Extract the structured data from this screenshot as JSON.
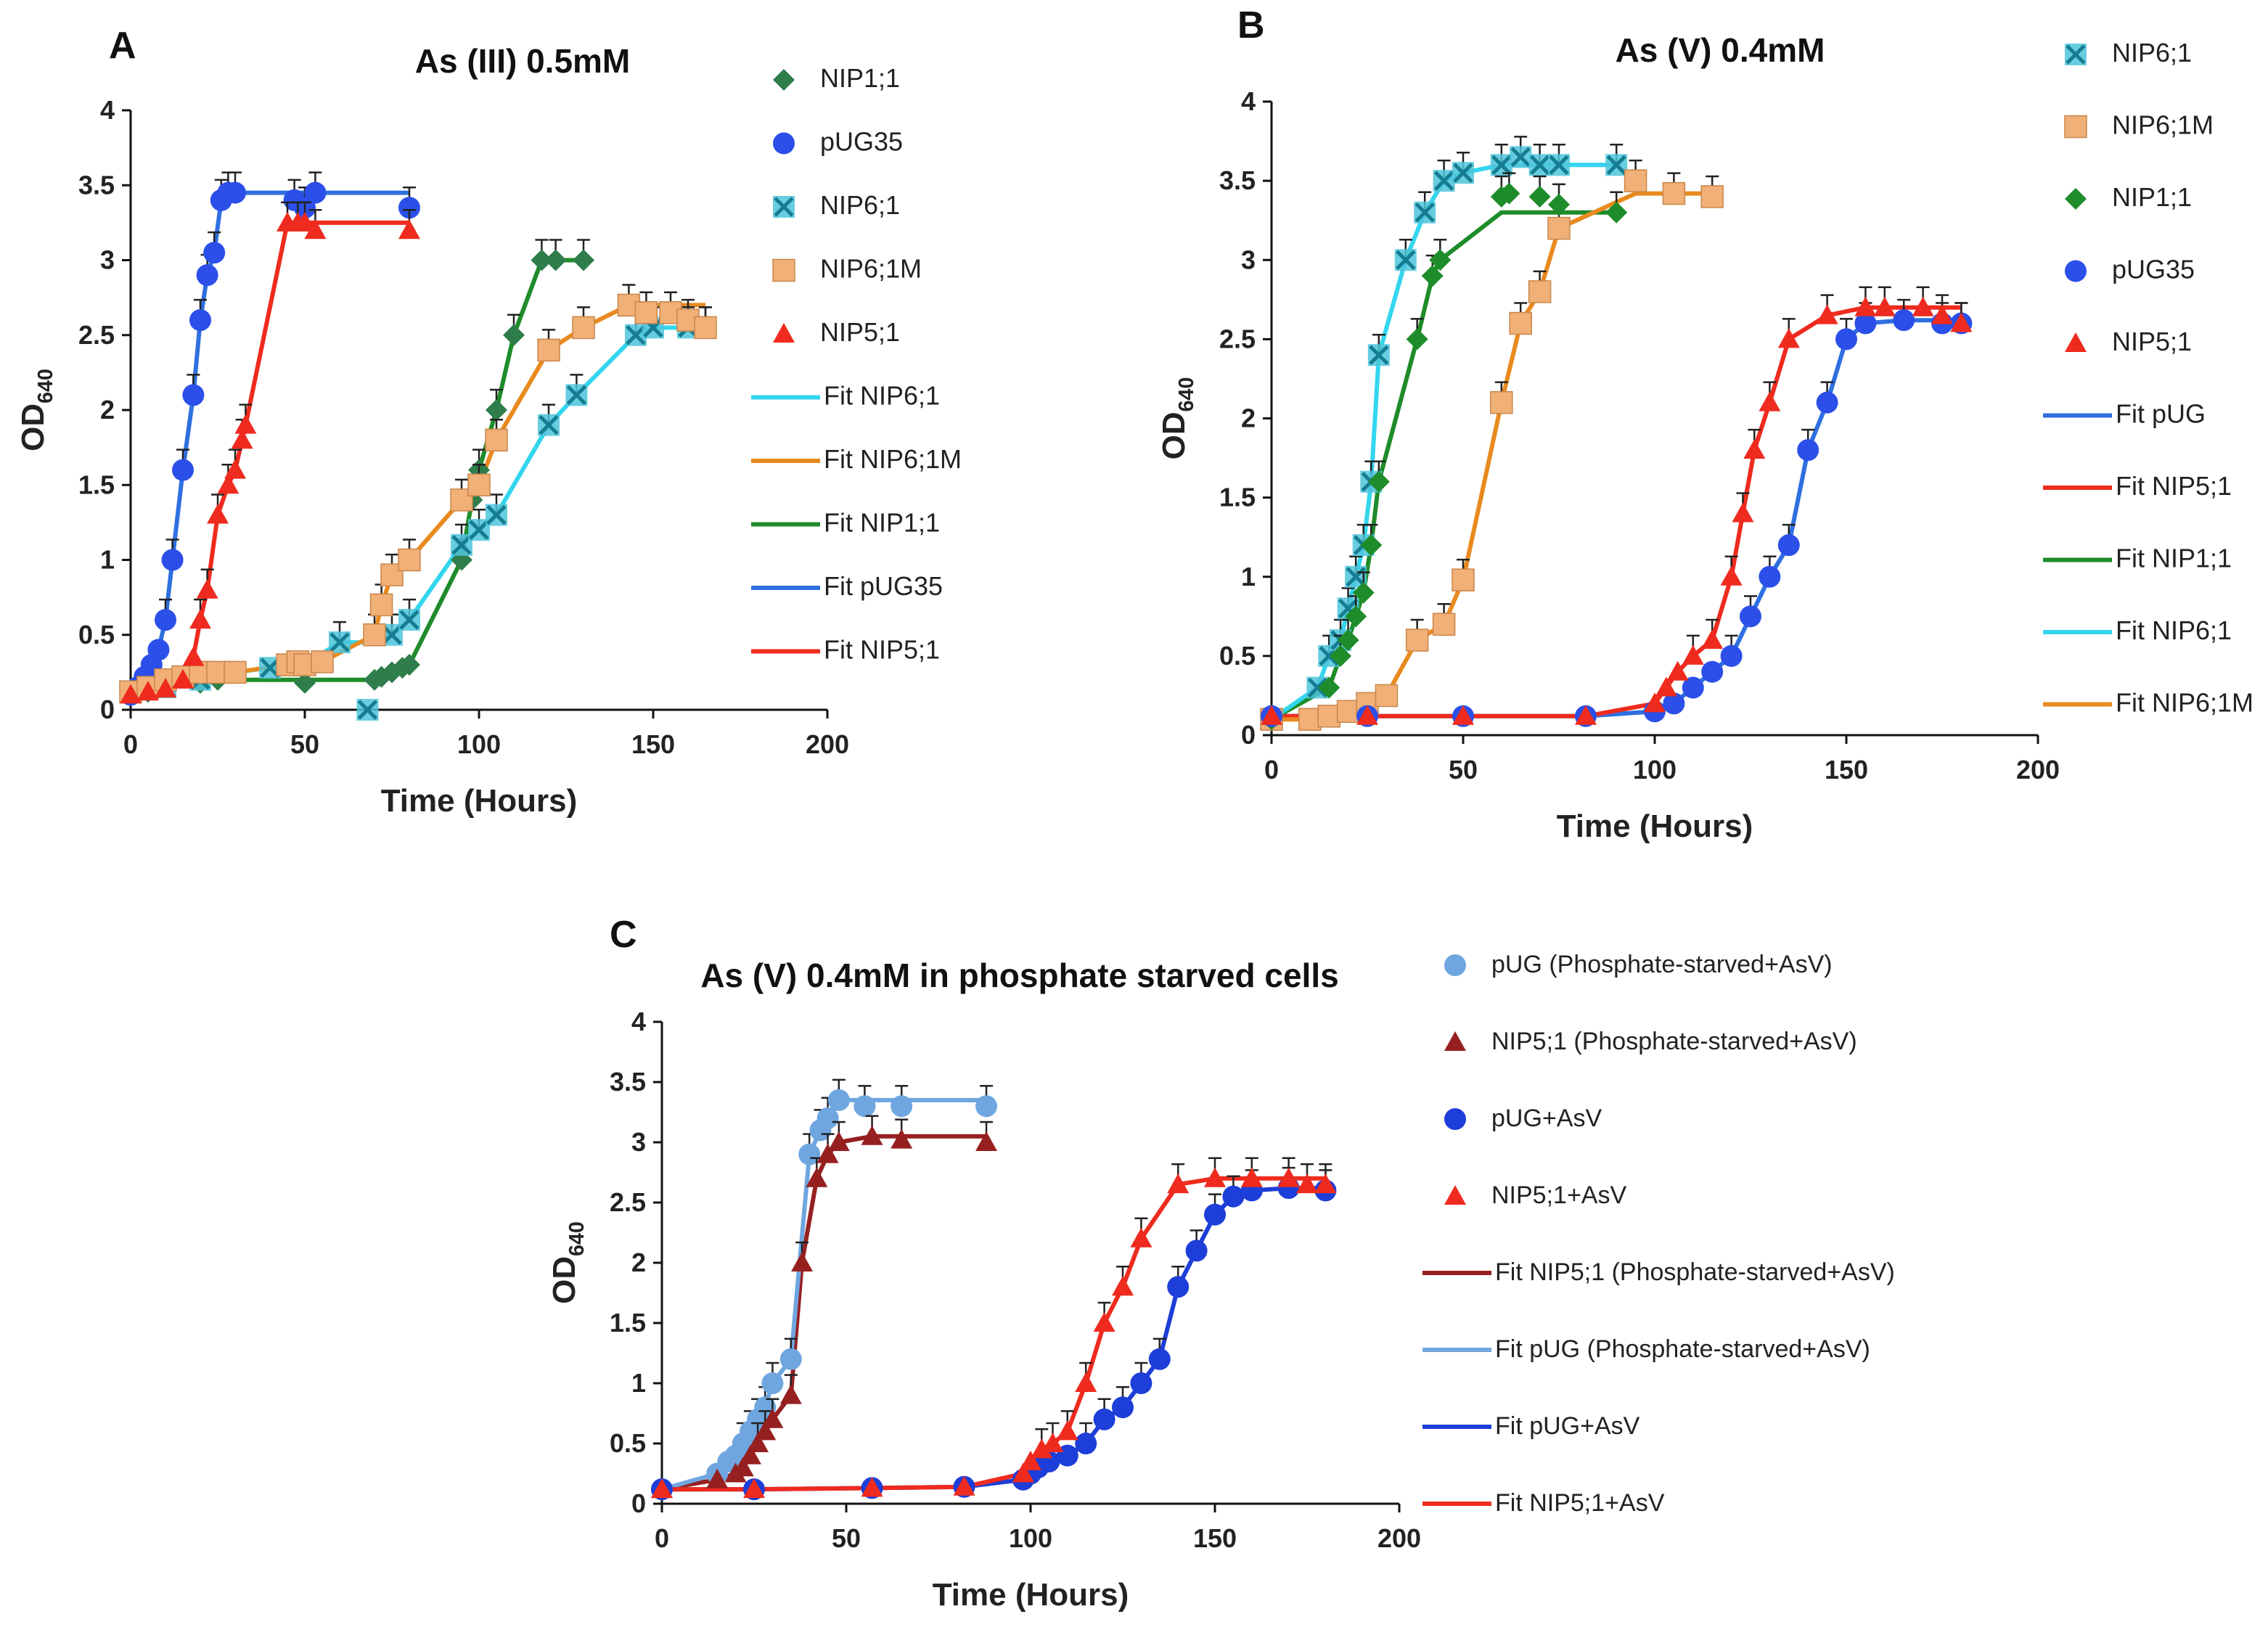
{
  "figure": {
    "note": "Three growth-curve panels (OD640 vs time) under arsenic treatment",
    "panel_labels": [
      "A",
      "B",
      "C"
    ]
  },
  "colors": {
    "cyan": "#33d6ee",
    "orange": "#e88a1f",
    "green": "#1e8c2a",
    "blue": "#2f6fe0",
    "red": "#ee2b1e",
    "marker_green": "#2e7d4a",
    "marker_blue": "#2b4fe8",
    "marker_cyan": "#4fc4da",
    "marker_orange": "#f0b077",
    "light_blue": "#6fa6e0",
    "dark_red": "#962020",
    "royal_blue": "#1d3ed8"
  },
  "chart_data": [
    {
      "type": "line",
      "panel": "A",
      "title": "As (III) 0.5mM",
      "xlabel": "Time (Hours)",
      "ylabel_main": "OD",
      "ylabel_sub": "640",
      "xlim": [
        0,
        200
      ],
      "ylim": [
        0,
        4
      ],
      "xticks": [
        "0",
        "50",
        "100",
        "150",
        "200"
      ],
      "yticks": [
        "0",
        "0.5",
        "1",
        "1.5",
        "2",
        "2.5",
        "3",
        "3.5",
        "4"
      ],
      "scatter_series": [
        {
          "name": "NIP1;1",
          "marker": "diamond",
          "color_key": "marker_green",
          "x": [
            0,
            5,
            10,
            20,
            25,
            50,
            70,
            72,
            75,
            78,
            80,
            95,
            98,
            100,
            105,
            110,
            118,
            122,
            130
          ],
          "y": [
            0.1,
            0.12,
            0.15,
            0.18,
            0.2,
            0.18,
            0.2,
            0.22,
            0.25,
            0.28,
            0.3,
            1.0,
            1.4,
            1.6,
            2.0,
            2.5,
            3.0,
            3.0,
            3.0
          ]
        },
        {
          "name": "pUG35",
          "marker": "circle",
          "color_key": "marker_blue",
          "x": [
            0,
            2,
            4,
            6,
            8,
            10,
            12,
            15,
            18,
            20,
            22,
            24,
            26,
            28,
            30,
            47,
            50,
            53,
            80
          ],
          "y": [
            0.1,
            0.15,
            0.22,
            0.3,
            0.4,
            0.6,
            1.0,
            1.6,
            2.1,
            2.6,
            2.9,
            3.05,
            3.4,
            3.45,
            3.45,
            3.4,
            3.35,
            3.45,
            3.35
          ]
        },
        {
          "name": "NIP6;1",
          "marker": "xsquare",
          "color_key": "marker_cyan",
          "x": [
            0,
            10,
            20,
            30,
            40,
            50,
            60,
            68,
            75,
            80,
            95,
            100,
            105,
            120,
            128,
            145,
            150,
            160,
            165
          ],
          "y": [
            0.12,
            0.15,
            0.2,
            0.25,
            0.28,
            0.3,
            0.45,
            0.0,
            0.5,
            0.6,
            1.1,
            1.2,
            1.3,
            1.9,
            2.1,
            2.5,
            2.55,
            2.55,
            2.55
          ]
        },
        {
          "name": "NIP6;1M",
          "marker": "square",
          "color_key": "marker_orange",
          "x": [
            0,
            5,
            10,
            15,
            20,
            25,
            30,
            45,
            48,
            50,
            55,
            70,
            72,
            75,
            80,
            95,
            100,
            105,
            120,
            130,
            143,
            148,
            155,
            160,
            165
          ],
          "y": [
            0.12,
            0.15,
            0.2,
            0.22,
            0.25,
            0.25,
            0.25,
            0.3,
            0.32,
            0.3,
            0.32,
            0.5,
            0.7,
            0.9,
            1.0,
            1.4,
            1.5,
            1.8,
            2.4,
            2.55,
            2.7,
            2.65,
            2.65,
            2.6,
            2.55
          ]
        },
        {
          "name": "NIP5;1",
          "marker": "triangle",
          "color_key": "red",
          "x": [
            0,
            5,
            10,
            15,
            18,
            20,
            22,
            25,
            28,
            30,
            32,
            33,
            45,
            48,
            50,
            53,
            80
          ],
          "y": [
            0.1,
            0.12,
            0.14,
            0.2,
            0.35,
            0.6,
            0.8,
            1.3,
            1.5,
            1.6,
            1.8,
            1.9,
            3.25,
            3.25,
            3.25,
            3.2,
            3.2
          ]
        }
      ],
      "fit_series": [
        {
          "name": "Fit NIP6;1",
          "color_key": "cyan",
          "plateau_y": 2.55
        },
        {
          "name": "Fit NIP6;1M",
          "color_key": "orange",
          "plateau_y": 2.7
        },
        {
          "name": "Fit NIP1;1",
          "color_key": "green",
          "plateau_y": 3.0
        },
        {
          "name": "Fit pUG35",
          "color_key": "blue",
          "plateau_y": 3.45
        },
        {
          "name": "Fit NIP5;1",
          "color_key": "red",
          "plateau_y": 3.25
        }
      ]
    },
    {
      "type": "line",
      "panel": "B",
      "title": "As (V) 0.4mM",
      "xlabel": "Time (Hours)",
      "ylabel_main": "OD",
      "ylabel_sub": "640",
      "xlim": [
        0,
        200
      ],
      "ylim": [
        0,
        4
      ],
      "xticks": [
        "0",
        "50",
        "100",
        "150",
        "200"
      ],
      "yticks": [
        "0",
        "0.5",
        "1",
        "1.5",
        "2",
        "2.5",
        "3",
        "3.5",
        "4"
      ],
      "scatter_series": [
        {
          "name": "NIP6;1",
          "marker": "xsquare",
          "color_key": "marker_cyan",
          "x": [
            0,
            12,
            15,
            18,
            20,
            22,
            24,
            26,
            28,
            35,
            40,
            45,
            50,
            60,
            65,
            70,
            75,
            90
          ],
          "y": [
            0.1,
            0.3,
            0.5,
            0.6,
            0.8,
            1.0,
            1.2,
            1.6,
            2.4,
            3.0,
            3.3,
            3.5,
            3.55,
            3.6,
            3.65,
            3.6,
            3.6,
            3.6
          ]
        },
        {
          "name": "NIP6;1M",
          "marker": "square",
          "color_key": "marker_orange",
          "x": [
            0,
            10,
            15,
            20,
            25,
            30,
            38,
            45,
            50,
            60,
            65,
            70,
            75,
            95,
            105,
            115
          ],
          "y": [
            0.1,
            0.1,
            0.12,
            0.15,
            0.2,
            0.25,
            0.6,
            0.7,
            0.98,
            2.1,
            2.6,
            2.8,
            3.2,
            3.5,
            3.42,
            3.4
          ]
        },
        {
          "name": "NIP1;1",
          "marker": "diamond",
          "color_key": "green",
          "x": [
            0,
            15,
            18,
            20,
            22,
            24,
            26,
            28,
            38,
            42,
            44,
            60,
            62,
            70,
            75,
            90
          ],
          "y": [
            0.1,
            0.3,
            0.5,
            0.6,
            0.75,
            0.9,
            1.2,
            1.6,
            2.5,
            2.9,
            3.0,
            3.4,
            3.42,
            3.4,
            3.35,
            3.3
          ]
        },
        {
          "name": "pUG35",
          "marker": "circle",
          "color_key": "marker_blue",
          "x": [
            0,
            25,
            50,
            82,
            100,
            105,
            110,
            115,
            120,
            125,
            130,
            135,
            140,
            145,
            150,
            155,
            165,
            175,
            180
          ],
          "y": [
            0.12,
            0.12,
            0.12,
            0.12,
            0.15,
            0.2,
            0.3,
            0.4,
            0.5,
            0.75,
            1.0,
            1.2,
            1.8,
            2.1,
            2.5,
            2.6,
            2.62,
            2.6,
            2.6
          ]
        },
        {
          "name": "NIP5;1",
          "marker": "triangle",
          "color_key": "red",
          "x": [
            0,
            25,
            50,
            82,
            100,
            103,
            106,
            110,
            115,
            120,
            123,
            126,
            130,
            135,
            145,
            155,
            160,
            170,
            175,
            180
          ],
          "y": [
            0.12,
            0.12,
            0.12,
            0.12,
            0.2,
            0.3,
            0.4,
            0.5,
            0.6,
            1.0,
            1.4,
            1.8,
            2.1,
            2.5,
            2.65,
            2.7,
            2.7,
            2.7,
            2.65,
            2.6
          ]
        }
      ],
      "fit_series": [
        {
          "name": "Fit pUG",
          "color_key": "blue",
          "plateau_y": 2.62
        },
        {
          "name": "Fit NIP5;1",
          "color_key": "red",
          "plateau_y": 2.7
        },
        {
          "name": "Fit NIP1;1",
          "color_key": "green",
          "plateau_y": 3.3
        },
        {
          "name": "Fit NIP6;1",
          "color_key": "cyan",
          "plateau_y": 3.6
        },
        {
          "name": "Fit NIP6;1M",
          "color_key": "orange",
          "plateau_y": 3.42
        }
      ]
    },
    {
      "type": "line",
      "panel": "C",
      "title": "As (V) 0.4mM in phosphate starved cells",
      "xlabel": "Time (Hours)",
      "ylabel_main": "OD",
      "ylabel_sub": "640",
      "xlim": [
        0,
        200
      ],
      "ylim": [
        0,
        4
      ],
      "xticks": [
        "0",
        "50",
        "100",
        "150",
        "200"
      ],
      "yticks": [
        "0",
        "0.5",
        "1",
        "1.5",
        "2",
        "2.5",
        "3",
        "3.5",
        "4"
      ],
      "scatter_series": [
        {
          "name": "pUG (Phosphate-starved+AsV)",
          "marker": "circle",
          "color_key": "light_blue",
          "x": [
            0,
            15,
            18,
            20,
            22,
            24,
            26,
            28,
            30,
            35,
            40,
            43,
            45,
            48,
            55,
            65,
            88
          ],
          "y": [
            0.12,
            0.25,
            0.35,
            0.4,
            0.5,
            0.6,
            0.7,
            0.8,
            1.0,
            1.2,
            2.9,
            3.1,
            3.2,
            3.35,
            3.3,
            3.3,
            3.3
          ]
        },
        {
          "name": "NIP5;1 (Phosphate-starved+AsV)",
          "marker": "triangle",
          "color_key": "dark_red",
          "x": [
            0,
            15,
            20,
            22,
            24,
            26,
            28,
            30,
            35,
            38,
            42,
            45,
            48,
            57,
            65,
            88
          ],
          "y": [
            0.12,
            0.2,
            0.25,
            0.3,
            0.4,
            0.5,
            0.6,
            0.7,
            0.9,
            2.0,
            2.7,
            2.9,
            3.0,
            3.05,
            3.02,
            3.0
          ]
        },
        {
          "name": "pUG+AsV",
          "marker": "circle",
          "color_key": "royal_blue",
          "x": [
            0,
            25,
            57,
            82,
            98,
            100,
            102,
            105,
            110,
            115,
            120,
            125,
            130,
            135,
            140,
            145,
            150,
            155,
            160,
            170,
            180
          ],
          "y": [
            0.12,
            0.12,
            0.13,
            0.14,
            0.2,
            0.25,
            0.3,
            0.35,
            0.4,
            0.5,
            0.7,
            0.8,
            1.0,
            1.2,
            1.8,
            2.1,
            2.4,
            2.55,
            2.6,
            2.62,
            2.6
          ]
        },
        {
          "name": "NIP5;1+AsV",
          "marker": "triangle",
          "color_key": "red",
          "x": [
            0,
            25,
            57,
            82,
            98,
            100,
            103,
            106,
            110,
            115,
            120,
            125,
            130,
            140,
            150,
            160,
            170,
            175,
            180
          ],
          "y": [
            0.12,
            0.12,
            0.13,
            0.14,
            0.25,
            0.35,
            0.45,
            0.5,
            0.6,
            1.0,
            1.5,
            1.8,
            2.2,
            2.65,
            2.7,
            2.7,
            2.7,
            2.65,
            2.65
          ]
        }
      ],
      "fit_series": [
        {
          "name": "Fit NIP5;1 (Phosphate-starved+AsV)",
          "color_key": "dark_red",
          "plateau_y": 3.05
        },
        {
          "name": "Fit pUG (Phosphate-starved+AsV)",
          "color_key": "light_blue",
          "plateau_y": 3.35
        },
        {
          "name": "Fit pUG+AsV",
          "color_key": "royal_blue",
          "plateau_y": 2.62
        },
        {
          "name": "Fit NIP5;1+AsV",
          "color_key": "red",
          "plateau_y": 2.7
        }
      ]
    }
  ]
}
